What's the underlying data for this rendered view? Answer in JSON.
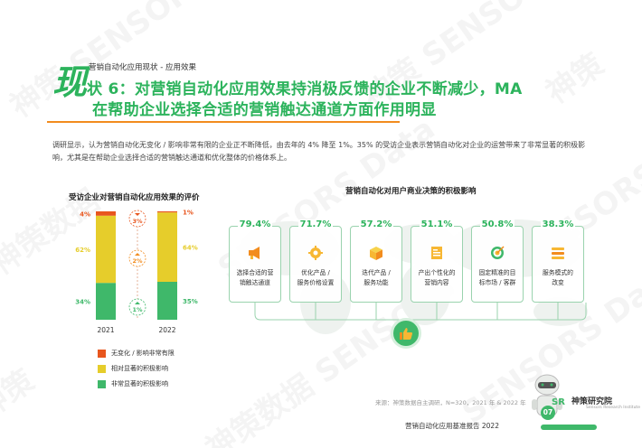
{
  "header": {
    "small_label": "营销自动化应用现状 - 应用效果",
    "big_char": "现",
    "title_line1": "状 6：对营销自动化应用效果持消极反馈的企业不断减少，MA",
    "title_line2": "在帮助企业选择合适的营销触达通道方面作用明显"
  },
  "paragraph": "调研显示，认为营销自动化无变化 / 影响非常有限的企业正不断降低，由去年的 4% 降至 1%。35% 的受访企业表示营销自动化对企业的运营带来了非常显著的积极影响，尤其是在帮助企业选择合适的营销触达通道和优化整体的价格体系上。",
  "left_section_title": "受访企业对营销自动化应用效果的评价",
  "right_section_title": "营销自动化对用户商业决策的积极影响",
  "colors": {
    "green": "#3fb86a",
    "yellow": "#e6cd2b",
    "orange": "#e8561e",
    "title_green": "#2cb35c",
    "accent_orange": "#f28c1e"
  },
  "chart_data": [
    {
      "type": "bar",
      "stacked": true,
      "title": "受访企业对营销自动化应用效果的评价",
      "categories": [
        "2021",
        "2022"
      ],
      "series": [
        {
          "name": "非常显著的积极影响",
          "values": [
            34,
            35
          ],
          "labels": [
            "34%",
            "35%"
          ],
          "color": "#3fb86a"
        },
        {
          "name": "相对显著的积极影响",
          "values": [
            62,
            64
          ],
          "labels": [
            "62%",
            "64%"
          ],
          "color": "#e6cd2b"
        },
        {
          "name": "无变化 / 影响非常有限",
          "values": [
            4,
            1
          ],
          "labels": [
            "4%",
            "1%"
          ],
          "color": "#e8561e"
        }
      ],
      "changes": [
        {
          "series": "无变化 / 影响非常有限",
          "direction": "down",
          "label": "3%"
        },
        {
          "series": "相对显著的积极影响",
          "direction": "up",
          "label": "2%"
        },
        {
          "series": "非常显著的积极影响",
          "direction": "up",
          "label": "1%"
        }
      ],
      "legend_position": "bottom"
    },
    {
      "type": "table",
      "title": "营销自动化对用户商业决策的积极影响",
      "items": [
        {
          "value": 79.4,
          "pct": "79.4%",
          "label": "选择合适的营\n销触达通道",
          "icon": "megaphone-icon"
        },
        {
          "value": 71.7,
          "pct": "71.7%",
          "label": "优化产品 /\n服务价格设置",
          "icon": "gear-icon"
        },
        {
          "value": 57.2,
          "pct": "57.2%",
          "label": "迭代产品 /\n服务功能",
          "icon": "box-icon"
        },
        {
          "value": 51.1,
          "pct": "51.1%",
          "label": "产出个性化的\n营销内容",
          "icon": "document-icon"
        },
        {
          "value": 50.8,
          "pct": "50.8%",
          "label": "固定精准的目\n标市场 / 客群",
          "icon": "target-icon"
        },
        {
          "value": 38.3,
          "pct": "38.3%",
          "label": "服务模式的\n改变",
          "icon": "list-icon"
        }
      ]
    }
  ],
  "source": "来源：神策数据自主调研，N=320，2021 年 & 2022 年",
  "footer": "营销自动化应用基准报告 2022",
  "page_number": "07",
  "brand": {
    "name": "神策研究院",
    "sub": "Sensors Research Institute"
  }
}
